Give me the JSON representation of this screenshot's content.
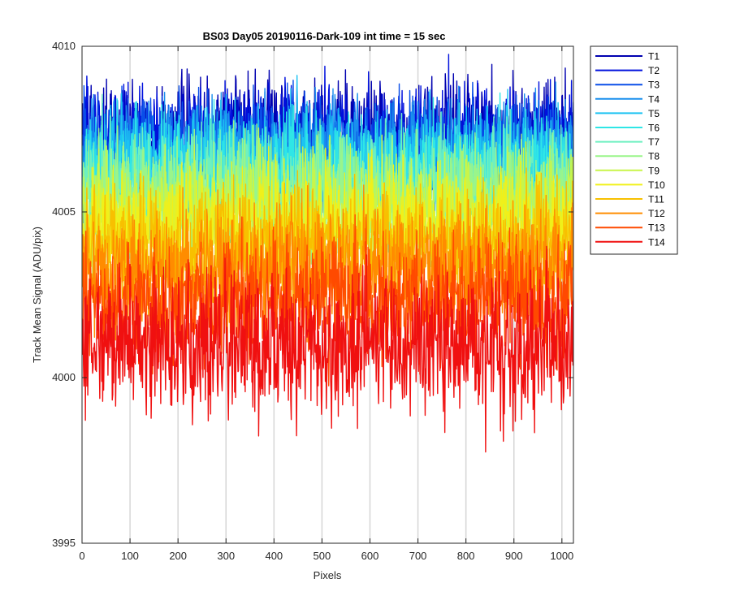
{
  "chart_data": {
    "type": "line",
    "title": "BS03 Day05 20190116-Dark-109 int time = 15 sec",
    "xlabel": "Pixels",
    "ylabel": "Track Mean Signal (ADU/pix)",
    "xlim": [
      0,
      1024
    ],
    "ylim": [
      3995,
      4010
    ],
    "xticks": [
      0,
      100,
      200,
      300,
      400,
      500,
      600,
      700,
      800,
      900,
      1000
    ],
    "yticks": [
      3995,
      4000,
      4005,
      4010
    ],
    "x_grid": true,
    "y_grid": false,
    "legend_position": "outside-top-right",
    "x_start": 1,
    "x_end": 1024,
    "series": [
      {
        "name": "T1",
        "color": "#0000B0",
        "mean": 4007.4,
        "amplitude": 0.9
      },
      {
        "name": "T2",
        "color": "#0010DD",
        "mean": 4007.2,
        "amplitude": 0.9
      },
      {
        "name": "T3",
        "color": "#0A4FE8",
        "mean": 4006.9,
        "amplitude": 0.9
      },
      {
        "name": "T4",
        "color": "#1A8FEE",
        "mean": 4006.6,
        "amplitude": 1.0
      },
      {
        "name": "T5",
        "color": "#1CC3F2",
        "mean": 4006.4,
        "amplitude": 1.0
      },
      {
        "name": "T6",
        "color": "#2FE6E6",
        "mean": 4006.1,
        "amplitude": 1.0
      },
      {
        "name": "T7",
        "color": "#6EF0C0",
        "mean": 4005.8,
        "amplitude": 1.0
      },
      {
        "name": "T8",
        "color": "#9AF58A",
        "mean": 4005.4,
        "amplitude": 1.0
      },
      {
        "name": "T9",
        "color": "#C8F54A",
        "mean": 4005.0,
        "amplitude": 1.0
      },
      {
        "name": "T10",
        "color": "#F0F01A",
        "mean": 4004.6,
        "amplitude": 1.0
      },
      {
        "name": "T11",
        "color": "#F8C000",
        "mean": 4004.0,
        "amplitude": 1.0
      },
      {
        "name": "T12",
        "color": "#FF8C00",
        "mean": 4003.3,
        "amplitude": 1.1
      },
      {
        "name": "T13",
        "color": "#FF4A00",
        "mean": 4002.3,
        "amplitude": 1.1
      },
      {
        "name": "T14",
        "color": "#F01010",
        "mean": 4001.0,
        "amplitude": 1.2
      }
    ]
  }
}
